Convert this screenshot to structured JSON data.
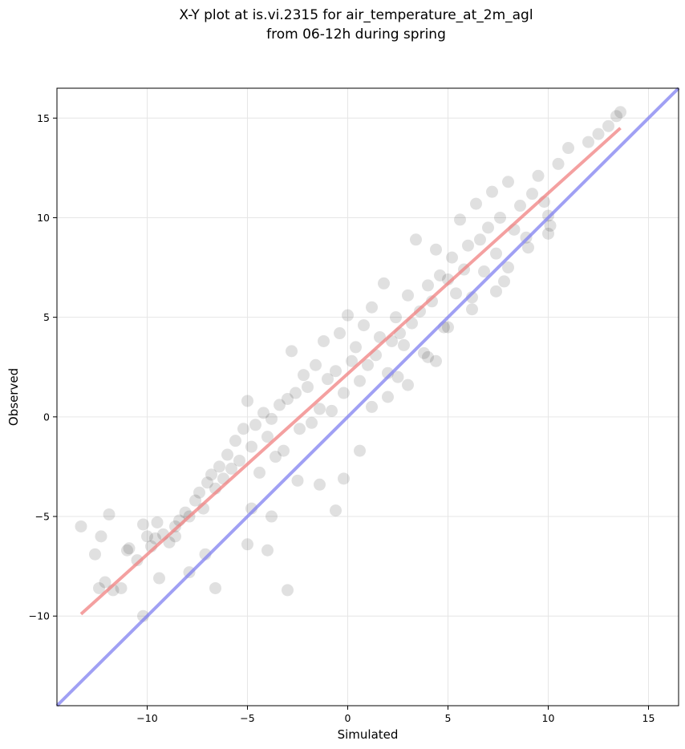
{
  "chart_data": {
    "type": "scatter",
    "title": [
      "X-Y plot at is.vi.2315 for air_temperature_at_2m_agl",
      "from 06-12h during spring"
    ],
    "xlabel": "Simulated",
    "ylabel": "Observed",
    "xlim": [
      -14.5,
      16.5
    ],
    "ylim": [
      -14.5,
      16.5
    ],
    "xticks": [
      -10,
      -5,
      0,
      5,
      10,
      15
    ],
    "yticks": [
      -10,
      -5,
      0,
      5,
      10,
      15
    ],
    "xtick_labels": [
      "−10",
      "−5",
      "0",
      "5",
      "10",
      "15"
    ],
    "ytick_labels": [
      "−10",
      "−5",
      "0",
      "5",
      "10",
      "15"
    ],
    "grid": true,
    "colors": {
      "points": "#000000",
      "fit_line": "#f08080",
      "identity_line": "#8080f0"
    },
    "fit_line": {
      "x": [
        -13.3,
        13.6
      ],
      "y": [
        -9.9,
        14.5
      ]
    },
    "identity_line": {
      "x": [
        -14.5,
        16.5
      ],
      "y": [
        -14.5,
        16.5
      ]
    },
    "points": [
      [
        -13.3,
        -5.5
      ],
      [
        -12.6,
        -6.9
      ],
      [
        -12.3,
        -6.0
      ],
      [
        -11.9,
        -4.9
      ],
      [
        -12.4,
        -8.6
      ],
      [
        -12.1,
        -8.3
      ],
      [
        -11.7,
        -8.7
      ],
      [
        -11.3,
        -8.6
      ],
      [
        -11.0,
        -6.7
      ],
      [
        -10.9,
        -6.6
      ],
      [
        -10.5,
        -7.2
      ],
      [
        -10.2,
        -5.4
      ],
      [
        -10.0,
        -6.0
      ],
      [
        -9.8,
        -6.5
      ],
      [
        -9.6,
        -6.1
      ],
      [
        -9.5,
        -5.3
      ],
      [
        -9.2,
        -5.9
      ],
      [
        -8.9,
        -6.3
      ],
      [
        -8.6,
        -5.5
      ],
      [
        -8.4,
        -5.2
      ],
      [
        -8.1,
        -4.8
      ],
      [
        -7.9,
        -5.0
      ],
      [
        -7.6,
        -4.2
      ],
      [
        -7.4,
        -3.8
      ],
      [
        -7.2,
        -4.6
      ],
      [
        -7.0,
        -3.3
      ],
      [
        -6.8,
        -2.9
      ],
      [
        -6.6,
        -3.6
      ],
      [
        -6.4,
        -2.5
      ],
      [
        -6.2,
        -3.1
      ],
      [
        -6.0,
        -1.9
      ],
      [
        -5.8,
        -2.6
      ],
      [
        -5.6,
        -1.2
      ],
      [
        -5.4,
        -2.2
      ],
      [
        -5.2,
        -0.6
      ],
      [
        -5.0,
        0.8
      ],
      [
        -4.8,
        -1.5
      ],
      [
        -4.6,
        -0.4
      ],
      [
        -4.4,
        -2.8
      ],
      [
        -4.2,
        0.2
      ],
      [
        -4.0,
        -1.0
      ],
      [
        -3.8,
        -0.1
      ],
      [
        -3.6,
        -2.0
      ],
      [
        -3.4,
        0.6
      ],
      [
        -3.2,
        -1.7
      ],
      [
        -3.0,
        0.9
      ],
      [
        -2.8,
        3.3
      ],
      [
        -2.6,
        1.2
      ],
      [
        -2.4,
        -0.6
      ],
      [
        -2.2,
        2.1
      ],
      [
        -2.0,
        1.5
      ],
      [
        -1.8,
        -0.3
      ],
      [
        -1.6,
        2.6
      ],
      [
        -1.4,
        0.4
      ],
      [
        -1.2,
        3.8
      ],
      [
        -1.0,
        1.9
      ],
      [
        -0.8,
        0.3
      ],
      [
        -0.6,
        2.3
      ],
      [
        -0.4,
        4.2
      ],
      [
        -0.2,
        1.2
      ],
      [
        0.0,
        5.1
      ],
      [
        0.2,
        2.8
      ],
      [
        0.4,
        3.5
      ],
      [
        0.6,
        1.8
      ],
      [
        0.8,
        4.6
      ],
      [
        1.0,
        2.6
      ],
      [
        1.2,
        5.5
      ],
      [
        1.4,
        3.1
      ],
      [
        1.6,
        4.0
      ],
      [
        1.8,
        6.7
      ],
      [
        2.0,
        2.2
      ],
      [
        2.2,
        3.8
      ],
      [
        2.4,
        5.0
      ],
      [
        2.6,
        4.2
      ],
      [
        2.8,
        3.6
      ],
      [
        3.0,
        6.1
      ],
      [
        3.2,
        4.7
      ],
      [
        3.4,
        8.9
      ],
      [
        3.6,
        5.3
      ],
      [
        3.8,
        3.2
      ],
      [
        4.0,
        6.6
      ],
      [
        4.2,
        5.8
      ],
      [
        4.4,
        8.4
      ],
      [
        4.6,
        7.1
      ],
      [
        4.8,
        4.5
      ],
      [
        5.0,
        6.9
      ],
      [
        5.2,
        8.0
      ],
      [
        5.4,
        6.2
      ],
      [
        5.6,
        9.9
      ],
      [
        5.8,
        7.4
      ],
      [
        6.0,
        8.6
      ],
      [
        6.2,
        6.0
      ],
      [
        6.4,
        10.7
      ],
      [
        6.6,
        8.9
      ],
      [
        6.8,
        7.3
      ],
      [
        7.0,
        9.5
      ],
      [
        7.2,
        11.3
      ],
      [
        7.4,
        8.2
      ],
      [
        7.6,
        10.0
      ],
      [
        7.8,
        6.8
      ],
      [
        8.0,
        11.8
      ],
      [
        8.3,
        9.4
      ],
      [
        8.6,
        10.6
      ],
      [
        8.9,
        9.0
      ],
      [
        9.2,
        11.2
      ],
      [
        9.5,
        12.1
      ],
      [
        9.8,
        10.8
      ],
      [
        10.1,
        9.6
      ],
      [
        10.5,
        12.7
      ],
      [
        11.0,
        13.5
      ],
      [
        12.0,
        13.8
      ],
      [
        12.5,
        14.2
      ],
      [
        13.0,
        14.6
      ],
      [
        13.4,
        15.1
      ],
      [
        13.6,
        15.3
      ],
      [
        -10.2,
        -10.0
      ],
      [
        -9.4,
        -8.1
      ],
      [
        -7.9,
        -7.8
      ],
      [
        -6.6,
        -8.6
      ],
      [
        -5.0,
        -6.4
      ],
      [
        -4.0,
        -6.7
      ],
      [
        -3.0,
        -8.7
      ],
      [
        -4.8,
        -4.6
      ],
      [
        -3.8,
        -5.0
      ],
      [
        -2.5,
        -3.2
      ],
      [
        -1.4,
        -3.4
      ],
      [
        -0.6,
        -4.7
      ],
      [
        -0.2,
        -3.1
      ],
      [
        0.6,
        -1.7
      ],
      [
        1.2,
        0.5
      ],
      [
        2.0,
        1.0
      ],
      [
        3.0,
        1.6
      ],
      [
        4.0,
        3.0
      ],
      [
        5.0,
        4.5
      ],
      [
        6.2,
        5.4
      ],
      [
        7.4,
        6.3
      ],
      [
        8.0,
        7.5
      ],
      [
        9.0,
        8.5
      ],
      [
        10.0,
        9.2
      ],
      [
        10.0,
        10.1
      ],
      [
        4.4,
        2.8
      ],
      [
        2.5,
        2.0
      ],
      [
        -7.1,
        -6.9
      ],
      [
        -8.6,
        -6.0
      ]
    ]
  }
}
